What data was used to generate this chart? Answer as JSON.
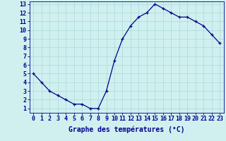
{
  "hours": [
    0,
    1,
    2,
    3,
    4,
    5,
    6,
    7,
    8,
    9,
    10,
    11,
    12,
    13,
    14,
    15,
    16,
    17,
    18,
    19,
    20,
    21,
    22,
    23
  ],
  "temps": [
    5.0,
    4.0,
    3.0,
    2.5,
    2.0,
    1.5,
    1.5,
    1.0,
    1.0,
    3.0,
    6.5,
    9.0,
    10.5,
    11.5,
    12.0,
    13.0,
    12.5,
    12.0,
    11.5,
    11.5,
    11.0,
    10.5,
    9.5,
    8.5
  ],
  "line_color": "#00008B",
  "bg_color": "#D0F0F0",
  "grid_color": "#A8D8D8",
  "xlabel": "Graphe des températures (°C)",
  "xlim": [
    -0.5,
    23.5
  ],
  "ylim": [
    0.5,
    13.3
  ],
  "yticks": [
    1,
    2,
    3,
    4,
    5,
    6,
    7,
    8,
    9,
    10,
    11,
    12,
    13
  ],
  "xticks": [
    0,
    1,
    2,
    3,
    4,
    5,
    6,
    7,
    8,
    9,
    10,
    11,
    12,
    13,
    14,
    15,
    16,
    17,
    18,
    19,
    20,
    21,
    22,
    23
  ],
  "marker": "+",
  "markersize": 3,
  "linewidth": 0.9,
  "xlabel_fontsize": 7,
  "tick_fontsize": 6,
  "tick_color": "#00008B",
  "axis_color": "#00008B"
}
